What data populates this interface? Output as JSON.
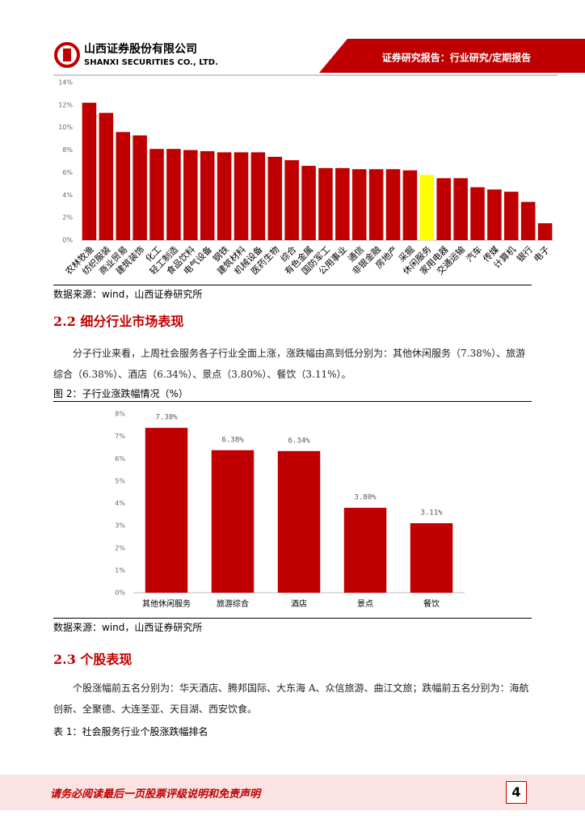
{
  "header": {
    "company_cn": "山西证券股份有限公司",
    "company_en": "SHANXI SECURITIES CO., LTD.",
    "report_type": "证券研究报告：行业研究/定期报告"
  },
  "chart_data": [
    {
      "type": "bar",
      "categories": [
        "农林牧渔",
        "纺织服装",
        "商业贸易",
        "建筑装饰",
        "化工",
        "轻工制造",
        "食品饮料",
        "电气设备",
        "钢铁",
        "建筑材料",
        "机械设备",
        "医药生物",
        "综合",
        "有色金属",
        "国防军工",
        "公用事业",
        "通信",
        "非银金融",
        "房地产",
        "采掘",
        "休闲服务",
        "家用电器",
        "交通运输",
        "汽车",
        "传媒",
        "计算机",
        "银行",
        "电子"
      ],
      "values": [
        12.2,
        11.3,
        9.6,
        9.3,
        8.1,
        8.1,
        8.0,
        7.9,
        7.8,
        7.8,
        7.8,
        7.4,
        7.1,
        6.6,
        6.4,
        6.4,
        6.3,
        6.3,
        6.3,
        6.2,
        5.8,
        5.5,
        5.5,
        4.7,
        4.5,
        4.3,
        3.4,
        1.5
      ],
      "colors": [
        "#c00000",
        "#c00000",
        "#c00000",
        "#c00000",
        "#c00000",
        "#c00000",
        "#c00000",
        "#c00000",
        "#c00000",
        "#c00000",
        "#c00000",
        "#c00000",
        "#c00000",
        "#c00000",
        "#c00000",
        "#c00000",
        "#c00000",
        "#c00000",
        "#c00000",
        "#c00000",
        "#ffff00",
        "#c00000",
        "#c00000",
        "#c00000",
        "#c00000",
        "#c00000",
        "#c00000",
        "#c00000"
      ],
      "ylim": [
        0,
        14
      ],
      "yticks": [
        {
          "value": 0,
          "label": "0%"
        },
        {
          "value": 2,
          "label": "2%"
        },
        {
          "value": 4,
          "label": "4%"
        },
        {
          "value": 6,
          "label": "6%"
        },
        {
          "value": 8,
          "label": "8%"
        },
        {
          "value": 10,
          "label": "10%"
        },
        {
          "value": 12,
          "label": "12%"
        },
        {
          "value": 14,
          "label": "14%"
        }
      ],
      "grid": false
    },
    {
      "type": "bar",
      "title": "图 2：子行业涨跌幅情况（%）",
      "categories": [
        "其他休闲服务",
        "旅游综合",
        "酒店",
        "景点",
        "餐饮"
      ],
      "values": [
        7.38,
        6.38,
        6.34,
        3.8,
        3.11
      ],
      "value_labels": [
        "7.38%",
        "6.38%",
        "6.34%",
        "3.80%",
        "3.11%"
      ],
      "color": "#c00000",
      "ylim": [
        0,
        8
      ],
      "yticks": [
        {
          "value": 0,
          "label": "0%"
        },
        {
          "value": 1,
          "label": "1%"
        },
        {
          "value": 2,
          "label": "2%"
        },
        {
          "value": 3,
          "label": "3%"
        },
        {
          "value": 4,
          "label": "4%"
        },
        {
          "value": 5,
          "label": "5%"
        },
        {
          "value": 6,
          "label": "6%"
        },
        {
          "value": 7,
          "label": "7%"
        },
        {
          "value": 8,
          "label": "8%"
        }
      ],
      "grid": false
    }
  ],
  "source_1": "数据来源：wind，山西证券研究所",
  "section_2_2": {
    "heading": "2.2 细分行业市场表现",
    "paragraph": "分子行业来看，上周社会服务各子行业全面上涨，涨跌幅由高到低分别为：其他休闲服务（7.38%）、旅游综合（6.38%）、酒店（6.34%）、景点（3.80%）、餐饮（3.11%）。"
  },
  "source_2": "数据来源：wind，山西证券研究所",
  "section_2_3": {
    "heading": "2.3 个股表现",
    "paragraph": "个股涨幅前五名分别为：华天酒店、腾邦国际、大东海 A、众信旅游、曲江文旅；跌幅前五名分别为：海航创新、全聚德、大连圣亚、天目湖、西安饮食。"
  },
  "table_1_title": "表 1：社会服务行业个股涨跌幅排名",
  "footer": {
    "disclaimer": "请务必阅读最后一页股票评级说明和免责声明",
    "page": "4"
  }
}
